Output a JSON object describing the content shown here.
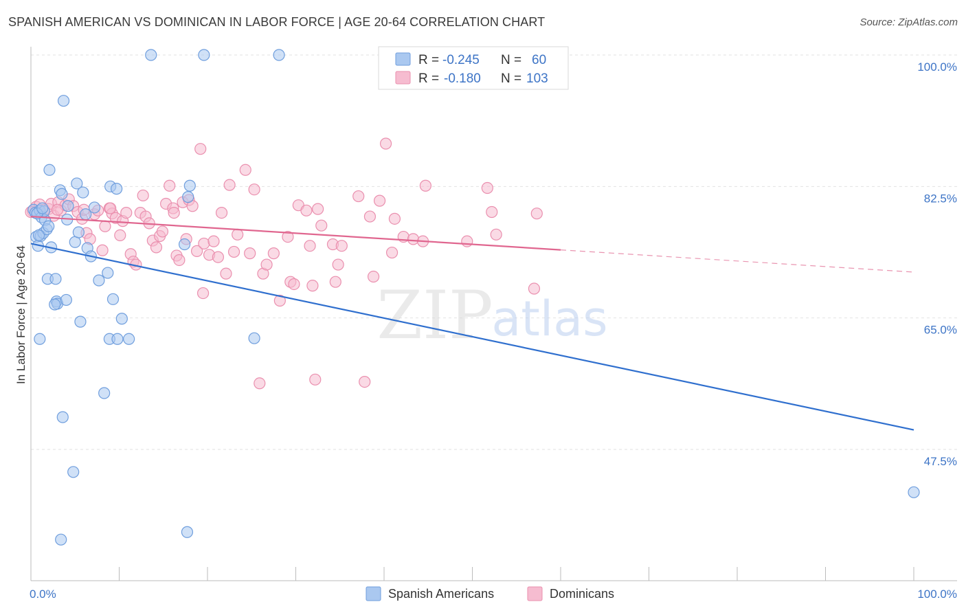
{
  "header": {
    "title": "SPANISH AMERICAN VS DOMINICAN IN LABOR FORCE | AGE 20-64 CORRELATION CHART",
    "source": "Source: ZipAtlas.com"
  },
  "watermark": {
    "zip": "ZIP",
    "atlas": "atlas"
  },
  "colors": {
    "blue_fill": "#aac8f0",
    "blue_stroke": "#6f9edd",
    "blue_line": "#2f6fce",
    "pink_fill": "#f6bcd0",
    "pink_stroke": "#ea8fae",
    "pink_line": "#e0668f",
    "tick_text": "#3d74c6",
    "grid": "#e2e2e2"
  },
  "legend": {
    "rows": [
      {
        "r_label": "R =",
        "r_value": "-0.245",
        "n_label": "N =",
        "n_value": "60"
      },
      {
        "r_label": "R =",
        "r_value": "-0.180",
        "n_label": "N =",
        "n_value": "103"
      }
    ]
  },
  "bottom_legend": {
    "series1": "Spanish Americans",
    "series2": "Dominicans"
  },
  "chart_data": {
    "type": "scatter",
    "title": "SPANISH AMERICAN VS DOMINICAN IN LABOR FORCE | AGE 20-64 CORRELATION CHART",
    "ylabel": "In Labor Force | Age 20-64",
    "xlabel": "",
    "xlim": [
      0,
      100
    ],
    "ylim": [
      32,
      101.5
    ],
    "x_tick_labels": [
      "0.0%",
      "100.0%"
    ],
    "y_ticks": [
      {
        "value": 100.0,
        "label": "100.0%"
      },
      {
        "value": 82.5,
        "label": "82.5%"
      },
      {
        "value": 65.0,
        "label": "65.0%"
      },
      {
        "value": 47.5,
        "label": "47.5%"
      }
    ],
    "grid": true,
    "legend_position": "top-center",
    "series": [
      {
        "name": "Spanish Americans",
        "r": -0.245,
        "n": 60,
        "trend": {
          "x": [
            0,
            100
          ],
          "y": [
            74.9,
            50.1
          ],
          "solid_to": 100
        },
        "points": [
          [
            0.3,
            79.4
          ],
          [
            0.5,
            79.0
          ],
          [
            0.6,
            75.8
          ],
          [
            0.8,
            74.6
          ],
          [
            1.0,
            79.3
          ],
          [
            1.1,
            75.9
          ],
          [
            1.2,
            78.4
          ],
          [
            1.4,
            76.3
          ],
          [
            1.6,
            78.0
          ],
          [
            1.8,
            76.8
          ],
          [
            2.0,
            77.2
          ],
          [
            1.9,
            70.2
          ],
          [
            2.1,
            84.7
          ],
          [
            2.3,
            74.4
          ],
          [
            2.8,
            70.2
          ],
          [
            2.9,
            67.2
          ],
          [
            3.0,
            66.9
          ],
          [
            3.3,
            82.0
          ],
          [
            3.5,
            81.5
          ],
          [
            3.7,
            93.9
          ],
          [
            4.0,
            67.4
          ],
          [
            4.1,
            78.1
          ],
          [
            4.2,
            79.9
          ],
          [
            5.0,
            75.1
          ],
          [
            5.2,
            82.9
          ],
          [
            5.4,
            76.4
          ],
          [
            5.6,
            64.5
          ],
          [
            5.9,
            81.7
          ],
          [
            6.2,
            78.8
          ],
          [
            6.4,
            74.3
          ],
          [
            6.8,
            73.2
          ],
          [
            7.2,
            79.7
          ],
          [
            7.7,
            70.0
          ],
          [
            8.7,
            71.0
          ],
          [
            8.9,
            62.2
          ],
          [
            9.0,
            82.5
          ],
          [
            9.3,
            67.5
          ],
          [
            9.7,
            82.2
          ],
          [
            9.8,
            62.2
          ],
          [
            10.3,
            64.9
          ],
          [
            11.1,
            62.2
          ],
          [
            13.6,
            100.0
          ],
          [
            17.4,
            74.8
          ],
          [
            17.8,
            81.1
          ],
          [
            18.0,
            82.6
          ],
          [
            19.6,
            100.0
          ],
          [
            25.3,
            62.3
          ],
          [
            28.1,
            100.0
          ],
          [
            3.6,
            51.8
          ],
          [
            4.8,
            44.5
          ],
          [
            1.0,
            62.2
          ],
          [
            8.3,
            55.0
          ],
          [
            3.4,
            35.5
          ],
          [
            17.7,
            36.5
          ],
          [
            100.0,
            41.8
          ],
          [
            2.7,
            66.8
          ],
          [
            1.5,
            79.2
          ],
          [
            0.7,
            78.9
          ],
          [
            1.3,
            79.6
          ],
          [
            0.9,
            76.0
          ]
        ]
      },
      {
        "name": "Dominicans",
        "r": -0.18,
        "n": 103,
        "trend": {
          "x": [
            0,
            100
          ],
          "y": [
            78.5,
            71.1
          ],
          "solid_to": 60
        },
        "points": [
          [
            0.2,
            79.2
          ],
          [
            0.6,
            79.8
          ],
          [
            1.0,
            80.1
          ],
          [
            1.5,
            79.4
          ],
          [
            2.0,
            79.5
          ],
          [
            2.3,
            80.2
          ],
          [
            2.6,
            78.6
          ],
          [
            3.1,
            80.4
          ],
          [
            3.4,
            79.3
          ],
          [
            3.9,
            80.0
          ],
          [
            4.3,
            80.8
          ],
          [
            4.8,
            79.9
          ],
          [
            5.3,
            79.1
          ],
          [
            5.8,
            78.2
          ],
          [
            6.3,
            76.3
          ],
          [
            6.7,
            75.5
          ],
          [
            7.2,
            78.8
          ],
          [
            7.6,
            79.3
          ],
          [
            8.1,
            74.0
          ],
          [
            8.4,
            77.2
          ],
          [
            8.9,
            79.6
          ],
          [
            9.2,
            78.9
          ],
          [
            9.6,
            78.3
          ],
          [
            10.1,
            76.0
          ],
          [
            10.4,
            77.9
          ],
          [
            10.8,
            79.0
          ],
          [
            11.3,
            73.5
          ],
          [
            11.6,
            72.5
          ],
          [
            11.9,
            72.1
          ],
          [
            12.4,
            79.0
          ],
          [
            12.7,
            81.3
          ],
          [
            13.0,
            78.5
          ],
          [
            13.4,
            77.6
          ],
          [
            13.8,
            75.3
          ],
          [
            14.2,
            74.4
          ],
          [
            14.6,
            75.9
          ],
          [
            14.9,
            76.5
          ],
          [
            15.3,
            80.2
          ],
          [
            15.7,
            82.6
          ],
          [
            16.1,
            79.6
          ],
          [
            16.5,
            73.3
          ],
          [
            16.8,
            72.7
          ],
          [
            17.2,
            80.4
          ],
          [
            17.6,
            75.5
          ],
          [
            17.9,
            80.7
          ],
          [
            18.3,
            79.9
          ],
          [
            18.8,
            73.9
          ],
          [
            19.2,
            87.5
          ],
          [
            19.6,
            74.9
          ],
          [
            19.5,
            68.3
          ],
          [
            20.2,
            73.4
          ],
          [
            20.7,
            75.2
          ],
          [
            21.2,
            73.1
          ],
          [
            21.6,
            79.0
          ],
          [
            22.1,
            70.9
          ],
          [
            22.5,
            82.7
          ],
          [
            23.0,
            73.8
          ],
          [
            23.4,
            76.1
          ],
          [
            24.3,
            84.7
          ],
          [
            24.8,
            73.6
          ],
          [
            25.3,
            82.1
          ],
          [
            26.3,
            70.9
          ],
          [
            26.7,
            72.1
          ],
          [
            27.5,
            73.6
          ],
          [
            28.2,
            67.3
          ],
          [
            29.1,
            75.8
          ],
          [
            29.4,
            69.8
          ],
          [
            29.8,
            69.5
          ],
          [
            30.3,
            80.0
          ],
          [
            31.2,
            79.3
          ],
          [
            31.6,
            74.6
          ],
          [
            31.9,
            69.3
          ],
          [
            32.5,
            79.5
          ],
          [
            32.9,
            77.3
          ],
          [
            34.2,
            74.8
          ],
          [
            34.5,
            69.8
          ],
          [
            34.8,
            72.1
          ],
          [
            35.2,
            74.6
          ],
          [
            37.1,
            81.2
          ],
          [
            38.4,
            78.5
          ],
          [
            38.8,
            70.5
          ],
          [
            39.5,
            80.6
          ],
          [
            40.2,
            88.2
          ],
          [
            40.9,
            73.7
          ],
          [
            41.2,
            78.2
          ],
          [
            42.2,
            75.8
          ],
          [
            43.3,
            75.5
          ],
          [
            44.4,
            75.2
          ],
          [
            44.7,
            82.6
          ],
          [
            49.4,
            75.2
          ],
          [
            51.7,
            82.3
          ],
          [
            52.2,
            79.1
          ],
          [
            52.7,
            76.1
          ],
          [
            57.3,
            78.9
          ],
          [
            57.0,
            68.9
          ],
          [
            25.9,
            56.3
          ],
          [
            32.2,
            56.8
          ],
          [
            37.8,
            56.5
          ],
          [
            16.2,
            79.0
          ],
          [
            6.0,
            79.4
          ],
          [
            0.0,
            79.1
          ],
          [
            9.0,
            79.6
          ],
          [
            3.0,
            79.4
          ]
        ]
      }
    ]
  }
}
